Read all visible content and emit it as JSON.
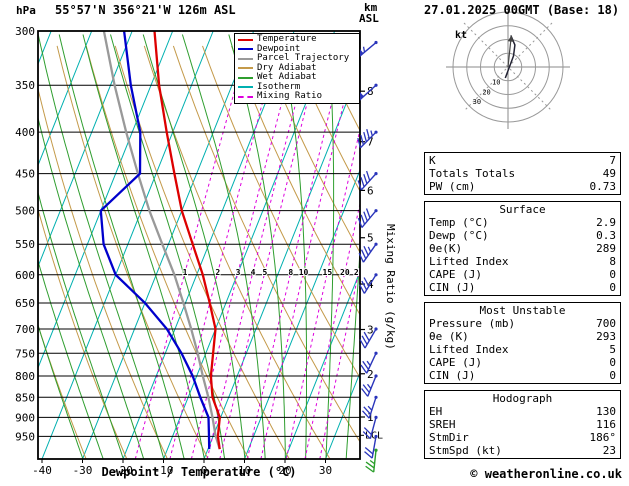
{
  "header": {
    "pressure_unit": "hPa",
    "station": "55°57'N 356°21'W 126m ASL",
    "altitude_unit_top": "km",
    "altitude_unit_bottom": "ASL",
    "datetime": "27.01.2025 00GMT (Base: 18)"
  },
  "legend": {
    "items": [
      {
        "label": "Temperature",
        "color": "#dd0000",
        "dash": "solid"
      },
      {
        "label": "Dewpoint",
        "color": "#0000cc",
        "dash": "solid"
      },
      {
        "label": "Parcel Trajectory",
        "color": "#999999",
        "dash": "solid"
      },
      {
        "label": "Dry Adiabat",
        "color": "#c49a4a",
        "dash": "solid"
      },
      {
        "label": "Wet Adiabat",
        "color": "#2f9e2f",
        "dash": "solid"
      },
      {
        "label": "Isotherm",
        "color": "#00b0b0",
        "dash": "solid"
      },
      {
        "label": "Mixing Ratio",
        "color": "#dd00dd",
        "dash": "dashed"
      }
    ]
  },
  "axes": {
    "pressure_ticks": [
      300,
      350,
      400,
      450,
      500,
      550,
      600,
      650,
      700,
      750,
      800,
      850,
      900,
      950
    ],
    "temp_ticks": [
      -40,
      -30,
      -20,
      -10,
      0,
      10,
      20,
      30
    ],
    "temp_axis_label": "Dewpoint / Temperature (°C)",
    "km_ticks": [
      8,
      7,
      6,
      5,
      4,
      3,
      2,
      1
    ],
    "lcl_label": "LCL",
    "mixing_axis_label": "Mixing Ratio (g/kg)",
    "mixing_tick_labels": [
      "1",
      "2",
      "3",
      "4",
      "5",
      "8",
      "10",
      "15",
      "20",
      "25"
    ]
  },
  "colors": {
    "temperature": "#dd0000",
    "dewpoint": "#0000cc",
    "parcel": "#999999",
    "dry_adiabat": "#c49a4a",
    "wet_adiabat": "#2f9e2f",
    "isotherm": "#00b0b0",
    "mixing_ratio": "#dd00dd",
    "grid": "#000000",
    "barb": "#2a35bb",
    "barb_surface": "#2a9e2a"
  },
  "chart_data": {
    "type": "skew-t-log-p-sounding",
    "pressure_hpa_range": [
      300,
      1013
    ],
    "surface_pressure_hpa": 985,
    "temperature_profile": [
      [
        985,
        2.9
      ],
      [
        950,
        1.2
      ],
      [
        900,
        -0.2
      ],
      [
        850,
        -4.0
      ],
      [
        800,
        -6.5
      ],
      [
        750,
        -8.2
      ],
      [
        700,
        -10.0
      ],
      [
        650,
        -14.0
      ],
      [
        600,
        -18.5
      ],
      [
        550,
        -24.0
      ],
      [
        500,
        -30.0
      ],
      [
        450,
        -35.5
      ],
      [
        400,
        -41.5
      ],
      [
        350,
        -48.0
      ],
      [
        300,
        -54.5
      ]
    ],
    "dewpoint_profile": [
      [
        985,
        0.3
      ],
      [
        950,
        -1.0
      ],
      [
        900,
        -3.0
      ],
      [
        850,
        -7.0
      ],
      [
        800,
        -11.0
      ],
      [
        750,
        -16.0
      ],
      [
        700,
        -22.0
      ],
      [
        650,
        -30.0
      ],
      [
        600,
        -40.0
      ],
      [
        550,
        -46.0
      ],
      [
        500,
        -50.0
      ],
      [
        450,
        -44.0
      ],
      [
        400,
        -48.0
      ],
      [
        350,
        -55.0
      ],
      [
        300,
        -62.0
      ]
    ],
    "parcel_profile": [
      [
        985,
        2.9
      ],
      [
        947,
        0.5
      ],
      [
        900,
        -2.0
      ],
      [
        850,
        -5.0
      ],
      [
        800,
        -8.5
      ],
      [
        750,
        -12.0
      ],
      [
        700,
        -16.0
      ],
      [
        650,
        -20.5
      ],
      [
        600,
        -25.5
      ],
      [
        550,
        -31.5
      ],
      [
        500,
        -38.0
      ],
      [
        450,
        -44.5
      ],
      [
        400,
        -51.5
      ],
      [
        350,
        -59.0
      ],
      [
        300,
        -67.0
      ]
    ],
    "lcl_pressure_hpa": 947,
    "isotherm_step_c": 10,
    "dry_adiabat_step_c": 10,
    "wet_adiabat_step_c": 5,
    "mixing_ratio_lines_gkg": [
      1,
      2,
      3,
      4,
      5,
      8,
      10,
      15,
      20,
      25
    ],
    "wind_barbs": [
      {
        "p": 310,
        "dir": 230,
        "kt": 55
      },
      {
        "p": 350,
        "dir": 228,
        "kt": 50
      },
      {
        "p": 400,
        "dir": 225,
        "kt": 45
      },
      {
        "p": 450,
        "dir": 222,
        "kt": 40
      },
      {
        "p": 500,
        "dir": 220,
        "kt": 40
      },
      {
        "p": 550,
        "dir": 215,
        "kt": 35
      },
      {
        "p": 600,
        "dir": 212,
        "kt": 30
      },
      {
        "p": 700,
        "dir": 210,
        "kt": 30
      },
      {
        "p": 750,
        "dir": 205,
        "kt": 25
      },
      {
        "p": 800,
        "dir": 202,
        "kt": 25
      },
      {
        "p": 850,
        "dir": 198,
        "kt": 25
      },
      {
        "p": 900,
        "dir": 195,
        "kt": 22
      },
      {
        "p": 950,
        "dir": 190,
        "kt": 20
      },
      {
        "p": 988,
        "dir": 186,
        "kt": 23,
        "surface": true
      }
    ]
  },
  "hodograph": {
    "unit": "kt",
    "rings_kt": [
      10,
      20,
      30,
      40
    ],
    "ring_labels": [
      "10",
      "20",
      "30"
    ],
    "trace_uv_kt": [
      [
        2,
        23
      ],
      [
        5,
        16
      ],
      [
        4,
        8
      ],
      [
        1,
        0
      ],
      [
        -2,
        -8
      ]
    ],
    "storm_dir_deg": 186,
    "storm_speed_kt": 23
  },
  "stats_panels": [
    {
      "title": "",
      "rows": [
        [
          "K",
          "7"
        ],
        [
          "Totals Totals",
          "49"
        ],
        [
          "PW (cm)",
          "0.73"
        ]
      ]
    },
    {
      "title": "Surface",
      "rows": [
        [
          "Temp (°C)",
          "2.9"
        ],
        [
          "Dewp (°C)",
          "0.3"
        ],
        [
          "θe(K)",
          "289"
        ],
        [
          "Lifted Index",
          "8"
        ],
        [
          "CAPE (J)",
          "0"
        ],
        [
          "CIN (J)",
          "0"
        ]
      ]
    },
    {
      "title": "Most Unstable",
      "rows": [
        [
          "Pressure (mb)",
          "700"
        ],
        [
          "θe (K)",
          "293"
        ],
        [
          "Lifted Index",
          "5"
        ],
        [
          "CAPE (J)",
          "0"
        ],
        [
          "CIN (J)",
          "0"
        ]
      ]
    },
    {
      "title": "Hodograph",
      "rows": [
        [
          "EH",
          "130"
        ],
        [
          "SREH",
          "116"
        ],
        [
          "StmDir",
          "186°"
        ],
        [
          "StmSpd (kt)",
          "23"
        ]
      ]
    }
  ],
  "footer": {
    "copyright": "© weatheronline.co.uk"
  }
}
